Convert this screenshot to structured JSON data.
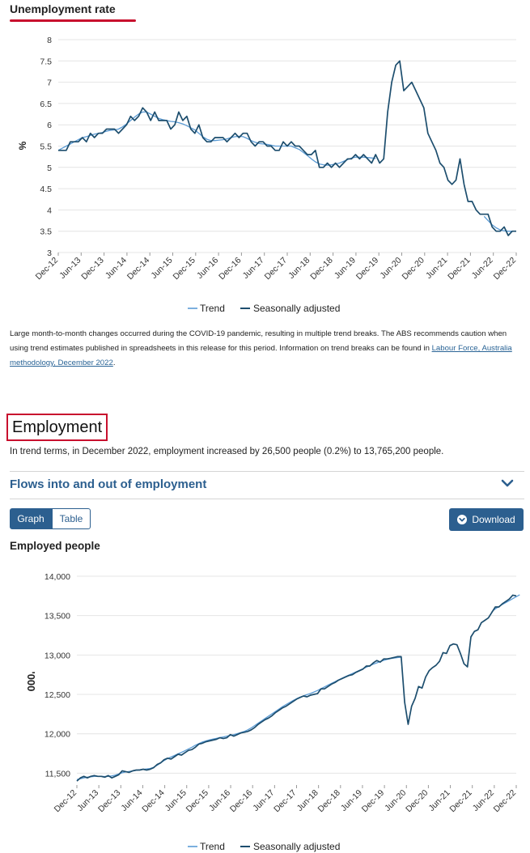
{
  "unemployment": {
    "title": "Unemployment rate",
    "note_text": "Large month-to-month changes occurred during the COVID-19 pandemic, resulting in multiple trend breaks. The ABS recommends caution when using trend estimates published in spreadsheets in this release for this period. Information on trend breaks can be found in ",
    "note_link": "Labour Force, Australia methodology, December 2022",
    "note_end": "."
  },
  "employment": {
    "heading": "Employment",
    "summary": "In trend terms, in December 2022, employment increased by 26,500 people (0.2%) to 13,765,200 people.",
    "flows_label": "Flows into and out of employment",
    "graph_button": "Graph",
    "table_button": "Table",
    "download_button": "Download",
    "chart_title": "Employed people"
  },
  "colors": {
    "trend": "#5b9bd5",
    "seasonal": "#1d4e6e",
    "accent": "#2c5f8f",
    "highlight": "#c8102e"
  },
  "chart_data": [
    {
      "type": "line",
      "title": "Unemployment rate",
      "ylabel": "%",
      "xlabel": "",
      "ylim": [
        3,
        8
      ],
      "yticks": [
        "3",
        "3.5",
        "4",
        "4.5",
        "5",
        "5.5",
        "6",
        "6.5",
        "7",
        "7.5",
        "8"
      ],
      "xticks": [
        "Dec-12",
        "Jun-13",
        "Dec-13",
        "Jun-14",
        "Dec-14",
        "Jun-15",
        "Dec-15",
        "Jun-16",
        "Dec-16",
        "Jun-17",
        "Dec-17",
        "Jun-18",
        "Dec-18",
        "Jun-19",
        "Dec-19",
        "Jun-20",
        "Dec-20",
        "Jun-21",
        "Dec-21",
        "Jun-22",
        "Dec-22"
      ],
      "legend": [
        "Trend",
        "Seasonally adjusted"
      ],
      "legend_position": "bottom",
      "grid": true,
      "series": [
        {
          "name": "Seasonally adjusted",
          "values": [
            5.4,
            5.4,
            5.4,
            5.6,
            5.6,
            5.6,
            5.7,
            5.6,
            5.8,
            5.7,
            5.8,
            5.8,
            5.9,
            5.9,
            5.9,
            5.8,
            5.9,
            6.0,
            6.2,
            6.1,
            6.2,
            6.4,
            6.3,
            6.1,
            6.3,
            6.1,
            6.1,
            6.1,
            5.9,
            6.0,
            6.3,
            6.1,
            6.2,
            5.9,
            5.8,
            6.0,
            5.7,
            5.6,
            5.6,
            5.7,
            5.7,
            5.7,
            5.6,
            5.7,
            5.8,
            5.7,
            5.8,
            5.8,
            5.6,
            5.5,
            5.6,
            5.6,
            5.5,
            5.5,
            5.4,
            5.4,
            5.6,
            5.5,
            5.6,
            5.5,
            5.5,
            5.4,
            5.3,
            5.3,
            5.4,
            5.0,
            5.0,
            5.1,
            5.0,
            5.1,
            5.0,
            5.1,
            5.2,
            5.2,
            5.3,
            5.2,
            5.3,
            5.2,
            5.1,
            5.3,
            5.1,
            5.2,
            6.3,
            7.0,
            7.4,
            7.5,
            6.8,
            6.9,
            7.0,
            6.8,
            6.6,
            6.4,
            5.8,
            5.6,
            5.4,
            5.1,
            5.0,
            4.7,
            4.6,
            4.7,
            5.2,
            4.6,
            4.2,
            4.2,
            4.0,
            3.9,
            3.9,
            3.9,
            3.6,
            3.5,
            3.5,
            3.6,
            3.4,
            3.5,
            3.5
          ]
        },
        {
          "name": "Trend",
          "values": [
            5.4,
            5.45,
            5.5,
            5.55,
            5.6,
            5.65,
            5.7,
            5.72,
            5.75,
            5.78,
            5.8,
            5.82,
            5.85,
            5.87,
            5.88,
            5.9,
            5.95,
            6.02,
            6.1,
            6.18,
            6.25,
            6.3,
            6.3,
            6.25,
            6.2,
            6.15,
            6.12,
            6.1,
            6.08,
            6.07,
            6.05,
            6.02,
            5.98,
            5.93,
            5.88,
            5.8,
            5.72,
            5.66,
            5.63,
            5.63,
            5.64,
            5.65,
            5.67,
            5.7,
            5.72,
            5.73,
            5.72,
            5.68,
            5.63,
            5.59,
            5.56,
            5.55,
            5.54,
            5.52,
            5.5,
            5.5,
            5.5,
            5.5,
            5.5,
            5.46,
            5.42,
            5.35,
            5.28,
            5.2,
            5.13,
            5.08,
            5.06,
            5.05,
            5.06,
            5.08,
            5.1,
            5.14,
            5.18,
            5.22,
            5.24,
            5.24,
            5.24,
            5.23,
            5.22,
            5.21,
            null,
            null,
            null,
            null,
            null,
            null,
            null,
            null,
            null,
            null,
            null,
            null,
            null,
            null,
            null,
            null,
            null,
            null,
            null,
            null,
            null,
            null,
            null,
            null,
            null,
            null,
            3.85,
            3.75,
            3.65,
            3.58,
            3.53,
            3.51,
            3.5,
            3.5,
            3.5
          ]
        }
      ]
    },
    {
      "type": "line",
      "title": "Employed people",
      "ylabel": "'000",
      "xlabel": "",
      "ylim": [
        11350,
        14000
      ],
      "yticks": [
        "11,500",
        "12,000",
        "12,500",
        "13,000",
        "13,500",
        "14,000"
      ],
      "xticks": [
        "Dec-12",
        "Jun-13",
        "Dec-13",
        "Jun-14",
        "Dec-14",
        "Jun-15",
        "Dec-15",
        "Jun-16",
        "Dec-16",
        "Jun-17",
        "Dec-17",
        "Jun-18",
        "Dec-18",
        "Jun-19",
        "Dec-19",
        "Jun-20",
        "Dec-20",
        "Jun-21",
        "Dec-21",
        "Jun-22",
        "Dec-22"
      ],
      "legend": [
        "Trend",
        "Seasonally adjusted"
      ],
      "legend_position": "bottom",
      "grid": true,
      "series": [
        {
          "name": "Seasonally adjusted",
          "values": [
            11400,
            11440,
            11460,
            11440,
            11460,
            11470,
            11460,
            11460,
            11450,
            11470,
            11440,
            11460,
            11480,
            11530,
            11520,
            11510,
            11530,
            11540,
            11540,
            11550,
            11540,
            11550,
            11570,
            11610,
            11630,
            11670,
            11690,
            11680,
            11710,
            11740,
            11730,
            11760,
            11790,
            11800,
            11830,
            11870,
            11880,
            11900,
            11910,
            11920,
            11930,
            11950,
            11940,
            11950,
            11990,
            11970,
            11990,
            12010,
            12020,
            12030,
            12050,
            12080,
            12120,
            12150,
            12180,
            12200,
            12230,
            12270,
            12300,
            12330,
            12350,
            12380,
            12410,
            12440,
            12460,
            12480,
            12470,
            12490,
            12500,
            12510,
            12570,
            12570,
            12600,
            12630,
            12650,
            12680,
            12700,
            12720,
            12740,
            12750,
            12780,
            12800,
            12820,
            12860,
            12860,
            12900,
            12930,
            12910,
            12950,
            12950,
            12960,
            12970,
            12980,
            12980,
            12400,
            12120,
            12350,
            12450,
            12600,
            12580,
            12720,
            12800,
            12840,
            12870,
            12920,
            13030,
            13020,
            13120,
            13140,
            13130,
            13020,
            12890,
            12850,
            13230,
            13300,
            13320,
            13410,
            13440,
            13470,
            13540,
            13610,
            13610,
            13650,
            13680,
            13710,
            13760,
            13750
          ]
        },
        {
          "name": "Trend",
          "values": [
            11420,
            11430,
            11440,
            11450,
            11455,
            11460,
            11462,
            11460,
            11458,
            11460,
            11465,
            11475,
            11490,
            11505,
            11515,
            11522,
            11530,
            11537,
            11543,
            11548,
            11553,
            11560,
            11575,
            11600,
            11630,
            11660,
            11685,
            11705,
            11725,
            11745,
            11765,
            11785,
            11808,
            11830,
            11855,
            11875,
            11895,
            11910,
            11922,
            11932,
            11942,
            11952,
            11960,
            11970,
            11980,
            11990,
            12002,
            12015,
            12030,
            12050,
            12075,
            12105,
            12135,
            12165,
            12195,
            12225,
            12255,
            12285,
            12315,
            12345,
            12372,
            12398,
            12422,
            12445,
            12465,
            12482,
            12497,
            12512,
            12530,
            12550,
            12572,
            12595,
            12617,
            12640,
            12662,
            12683,
            12705,
            12725,
            12745,
            12765,
            12785,
            12805,
            12825,
            12845,
            12865,
            12883,
            12900,
            12917,
            12932,
            12945,
            12955,
            12962,
            12968,
            12972,
            null,
            null,
            null,
            null,
            null,
            null,
            null,
            null,
            null,
            null,
            null,
            null,
            null,
            null,
            null,
            null,
            null,
            null,
            null,
            null,
            null,
            null,
            null,
            null,
            null,
            13550,
            13585,
            13615,
            13640,
            13665,
            13690,
            13715,
            13740,
            13765
          ]
        }
      ]
    }
  ]
}
